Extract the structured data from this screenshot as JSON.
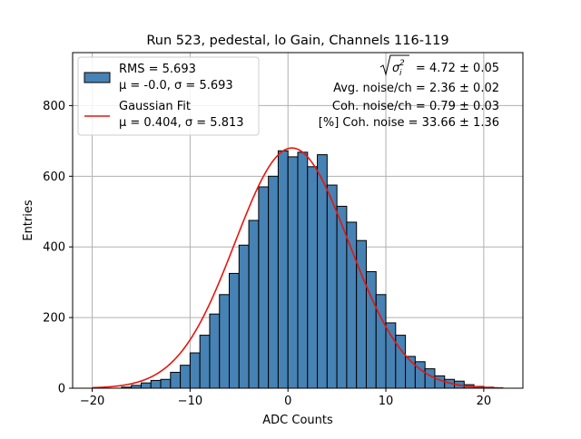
{
  "chart_data": {
    "type": "bar",
    "title": "Run 523, pedestal, lo Gain, Channels 116-119",
    "xlabel": "ADC Counts",
    "ylabel": "Entries",
    "xlim": [
      -22,
      24
    ],
    "ylim": [
      0,
      950
    ],
    "xticks": [
      -20,
      -10,
      0,
      10,
      20
    ],
    "xtick_labels": [
      "−20",
      "−10",
      "0",
      "10",
      "20"
    ],
    "yticks": [
      0,
      200,
      400,
      600,
      800
    ],
    "ytick_labels": [
      "0",
      "200",
      "400",
      "600",
      "800"
    ],
    "grid": true,
    "legend_position": "upper-left",
    "bin_width": 1,
    "histogram": {
      "bin_left_edges": [
        -17,
        -16,
        -15,
        -14,
        -13,
        -12,
        -11,
        -10,
        -9,
        -8,
        -7,
        -6,
        -5,
        -4,
        -3,
        -2,
        -1,
        0,
        1,
        2,
        3,
        4,
        5,
        6,
        7,
        8,
        9,
        10,
        11,
        12,
        13,
        14,
        15,
        16,
        17,
        18,
        19,
        20
      ],
      "counts": [
        3,
        8,
        15,
        22,
        25,
        45,
        65,
        100,
        150,
        210,
        265,
        325,
        405,
        475,
        570,
        600,
        672,
        655,
        668,
        627,
        661,
        575,
        515,
        470,
        418,
        330,
        265,
        185,
        150,
        90,
        75,
        55,
        35,
        25,
        20,
        10,
        5,
        3
      ],
      "fill_color": "#4682b4",
      "edge_color": "#000000"
    },
    "fit": {
      "name": "Gaussian Fit",
      "mu": 0.404,
      "sigma": 5.813,
      "peak": 680,
      "x_range": [
        -20,
        22
      ],
      "color": "#e8150e"
    },
    "legend": [
      {
        "kind": "patch",
        "line1": "RMS = 5.693",
        "line2": "μ = -0.0, σ = 5.693",
        "color": "#4682b4"
      },
      {
        "kind": "line",
        "line1": "Gaussian Fit",
        "line2": "μ = 0.404, σ = 5.813",
        "color": "#e8150e"
      }
    ],
    "annotations": {
      "sqrt_value": "= 4.72 ± 0.05",
      "avg_noise": "Avg. noise/ch = 2.36 ± 0.02",
      "coh_noise": "Coh. noise/ch = 0.79 ± 0.03",
      "pct_coh_noise": "[%] Coh. noise = 33.66 ± 1.36"
    }
  }
}
